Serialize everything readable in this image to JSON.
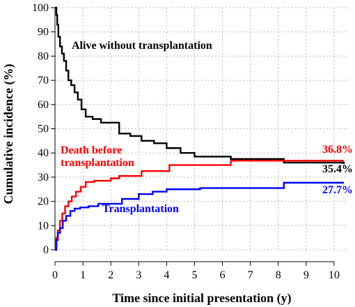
{
  "chart_data": {
    "type": "line",
    "xlabel": "Time since initial presentation (y)",
    "ylabel": "Cumulative incidence (%)",
    "xlim": [
      0,
      10.5
    ],
    "ylim": [
      0,
      100
    ],
    "x_ticks": [
      0,
      1,
      2,
      3,
      4,
      5,
      6,
      7,
      8,
      9,
      10
    ],
    "y_ticks": [
      0,
      10,
      20,
      30,
      40,
      50,
      60,
      70,
      80,
      90,
      100
    ],
    "grid": true,
    "step": true,
    "series": [
      {
        "name": "Alive without transplantation",
        "color": "#000000",
        "points": [
          [
            0.0,
            100
          ],
          [
            0.05,
            97
          ],
          [
            0.08,
            93
          ],
          [
            0.12,
            88
          ],
          [
            0.18,
            84
          ],
          [
            0.25,
            81
          ],
          [
            0.32,
            78
          ],
          [
            0.4,
            74
          ],
          [
            0.48,
            70
          ],
          [
            0.58,
            68
          ],
          [
            0.7,
            65
          ],
          [
            0.82,
            62
          ],
          [
            0.95,
            58
          ],
          [
            1.1,
            55
          ],
          [
            1.35,
            54
          ],
          [
            1.65,
            52.5
          ],
          [
            2.05,
            52.5
          ],
          [
            2.3,
            48
          ],
          [
            2.7,
            47
          ],
          [
            3.1,
            45
          ],
          [
            3.55,
            44
          ],
          [
            4.0,
            42
          ],
          [
            4.5,
            40
          ],
          [
            5.0,
            38.5
          ],
          [
            6.3,
            37.5
          ],
          [
            8.2,
            36.0
          ],
          [
            10.35,
            35.4
          ]
        ],
        "end_label": "35.4%"
      },
      {
        "name": "Death before transplantation",
        "color": "#ff0000",
        "points": [
          [
            0.0,
            0
          ],
          [
            0.05,
            5
          ],
          [
            0.1,
            8
          ],
          [
            0.18,
            12
          ],
          [
            0.26,
            15
          ],
          [
            0.36,
            18
          ],
          [
            0.48,
            20
          ],
          [
            0.6,
            22
          ],
          [
            0.75,
            24
          ],
          [
            0.92,
            26
          ],
          [
            1.1,
            28
          ],
          [
            1.4,
            28.5
          ],
          [
            2.0,
            29.5
          ],
          [
            2.3,
            30.5
          ],
          [
            3.1,
            32.5
          ],
          [
            4.1,
            35
          ],
          [
            6.3,
            36.8
          ],
          [
            10.35,
            36.8
          ]
        ],
        "end_label": "36.8%"
      },
      {
        "name": "Transplantation",
        "color": "#0000ff",
        "points": [
          [
            0.0,
            0
          ],
          [
            0.05,
            4
          ],
          [
            0.1,
            7
          ],
          [
            0.18,
            9
          ],
          [
            0.28,
            12
          ],
          [
            0.4,
            14
          ],
          [
            0.55,
            16
          ],
          [
            0.7,
            17
          ],
          [
            0.9,
            17.5
          ],
          [
            1.2,
            18
          ],
          [
            1.55,
            19
          ],
          [
            2.1,
            19
          ],
          [
            2.4,
            21
          ],
          [
            3.0,
            23
          ],
          [
            3.5,
            24
          ],
          [
            4.0,
            25
          ],
          [
            5.2,
            25.5
          ],
          [
            7.0,
            25.5
          ],
          [
            8.2,
            27.7
          ],
          [
            10.35,
            27.7
          ]
        ],
        "end_label": "27.7%"
      }
    ],
    "annotations": [
      {
        "text": "Alive without transplantation",
        "color": "#000000"
      },
      {
        "text": "Death before",
        "color": "#ff0000"
      },
      {
        "text": "transplantation",
        "color": "#ff0000"
      },
      {
        "text": "Transplantation",
        "color": "#0000ff"
      }
    ]
  }
}
